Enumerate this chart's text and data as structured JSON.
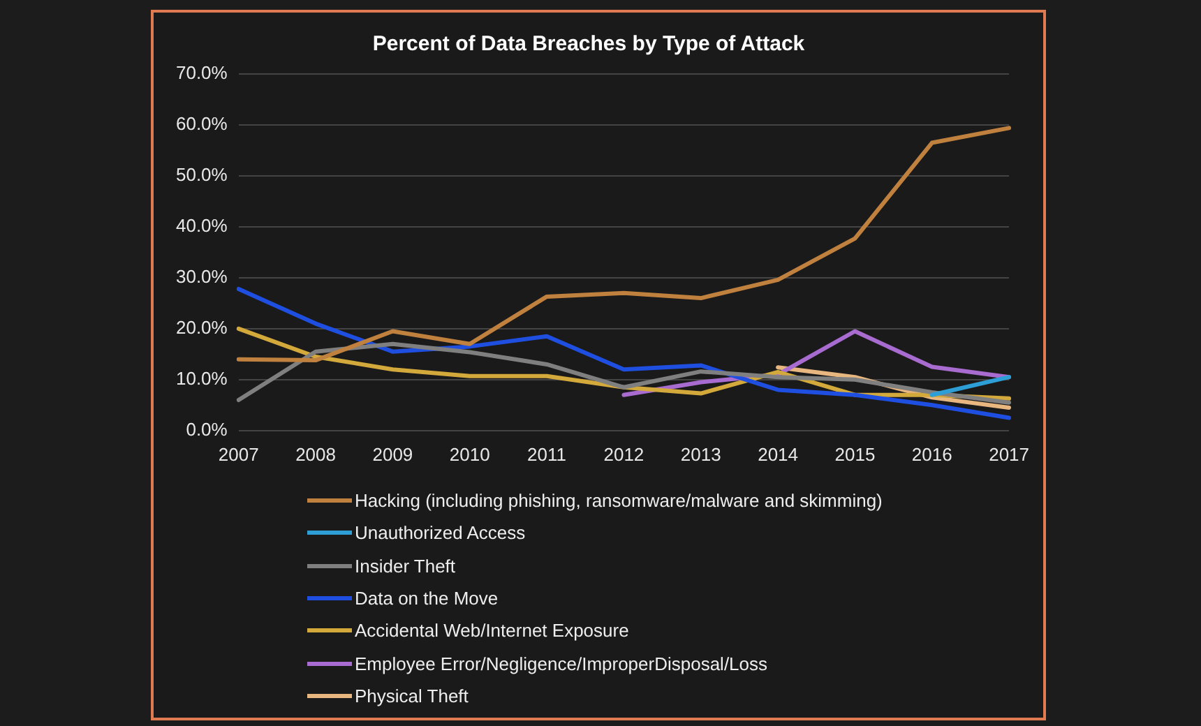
{
  "chart_data": {
    "type": "line",
    "title": "Percent of Data Breaches by Type of Attack",
    "categories": [
      "2007",
      "2008",
      "2009",
      "2010",
      "2011",
      "2012",
      "2013",
      "2014",
      "2015",
      "2016",
      "2017"
    ],
    "series": [
      {
        "name": "Hacking (including phishing, ransomware/malware and skimming)",
        "color": "#c0813f",
        "values": [
          14.0,
          13.8,
          19.5,
          17.0,
          26.3,
          27.0,
          26.0,
          29.6,
          37.7,
          56.5,
          59.4
        ]
      },
      {
        "name": "Unauthorized Access",
        "color": "#2e9fd6",
        "values": [
          null,
          null,
          null,
          null,
          null,
          null,
          null,
          null,
          null,
          7.0,
          10.5
        ]
      },
      {
        "name": "Insider Theft",
        "color": "#7f7f7f",
        "values": [
          6.0,
          15.5,
          17.0,
          15.4,
          13.0,
          8.5,
          11.6,
          10.5,
          10.0,
          7.5,
          5.5
        ]
      },
      {
        "name": "Data on the Move",
        "color": "#1f4fe0",
        "values": [
          27.8,
          21.0,
          15.5,
          16.5,
          18.5,
          12.0,
          12.8,
          8.0,
          7.0,
          5.0,
          2.5
        ]
      },
      {
        "name": "Accidental Web/Internet Exposure",
        "color": "#d4a93c",
        "values": [
          20.0,
          14.5,
          12.0,
          10.7,
          10.7,
          8.5,
          7.3,
          11.5,
          7.0,
          7.0,
          6.3
        ]
      },
      {
        "name": "Employee Error/Negligence/ImproperDisposal/Loss",
        "color": "#a86bd0",
        "values": [
          null,
          null,
          null,
          null,
          null,
          7.0,
          9.5,
          11.0,
          19.5,
          12.5,
          10.5
        ]
      },
      {
        "name": "Physical Theft",
        "color": "#e8b67f",
        "values": [
          null,
          null,
          null,
          null,
          null,
          null,
          null,
          12.4,
          10.5,
          6.5,
          4.5
        ]
      }
    ],
    "ylim": [
      0,
      70
    ],
    "yticks": [
      {
        "value": 0,
        "label": "0.0%"
      },
      {
        "value": 10,
        "label": "10.0%"
      },
      {
        "value": 20,
        "label": "20.0%"
      },
      {
        "value": 30,
        "label": "30.0%"
      },
      {
        "value": 40,
        "label": "40.0%"
      },
      {
        "value": 50,
        "label": "50.0%"
      },
      {
        "value": 60,
        "label": "60.0%"
      },
      {
        "value": 70,
        "label": "70.0%"
      }
    ],
    "grid": "y",
    "legend": "bottom",
    "marker": "none"
  }
}
